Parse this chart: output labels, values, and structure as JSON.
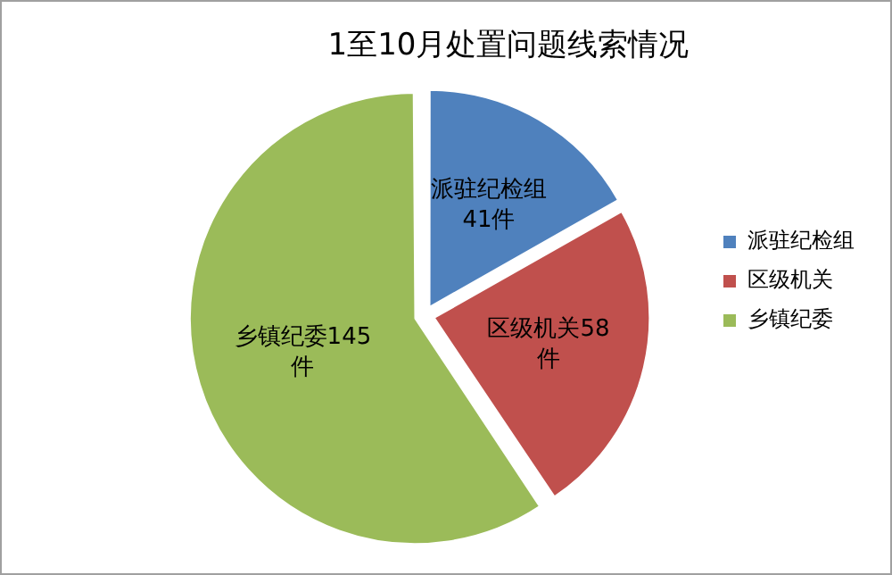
{
  "chart_data": {
    "type": "pie",
    "title": "1至10月处置问题线索情况",
    "categories": [
      "派驻纪检组",
      "区级机关",
      "乡镇纪委"
    ],
    "values": [
      41,
      58,
      145
    ],
    "colors": [
      "#4f81bd",
      "#c0504d",
      "#9bbb59"
    ],
    "value_labels": [
      "派驻纪检组\n41件",
      "区级机关58\n件",
      "乡镇纪委145\n件"
    ],
    "legend": "right"
  }
}
